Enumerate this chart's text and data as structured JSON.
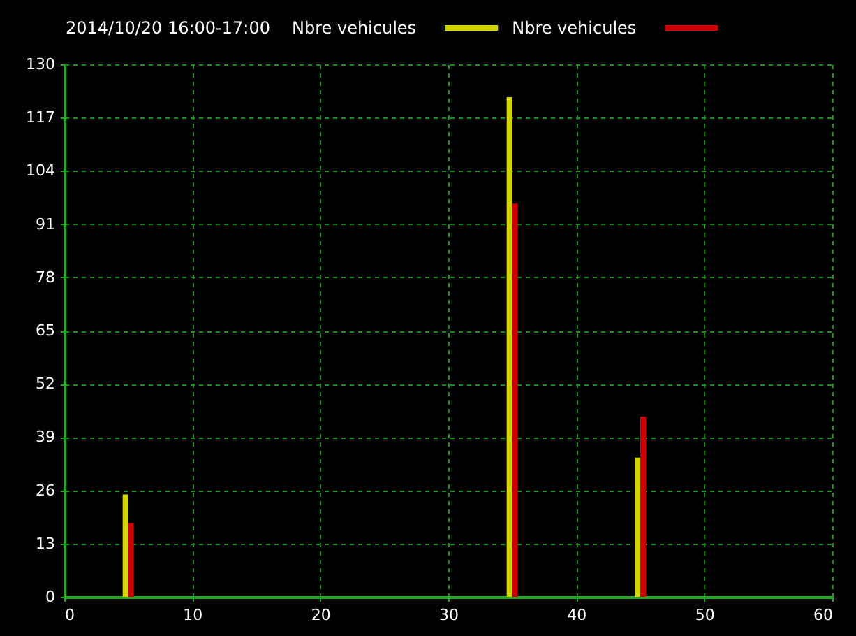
{
  "chart_data": {
    "type": "bar",
    "title": "2014/10/20 16:00-17:00",
    "x": [
      5,
      35,
      45
    ],
    "series": [
      {
        "name": "Nbre vehicules",
        "color": "#d4d400",
        "values": [
          25,
          122,
          34
        ]
      },
      {
        "name": "Nbre vehicules",
        "color": "#cc0000",
        "values": [
          18,
          96,
          44
        ]
      }
    ],
    "xlim": [
      0,
      60
    ],
    "xticks": [
      0,
      10,
      20,
      30,
      40,
      50,
      60
    ],
    "ylim": [
      0,
      130
    ],
    "yticks": [
      0,
      13,
      26,
      39,
      52,
      65,
      78,
      91,
      104,
      117,
      130
    ],
    "grid": true,
    "legend": "top"
  }
}
